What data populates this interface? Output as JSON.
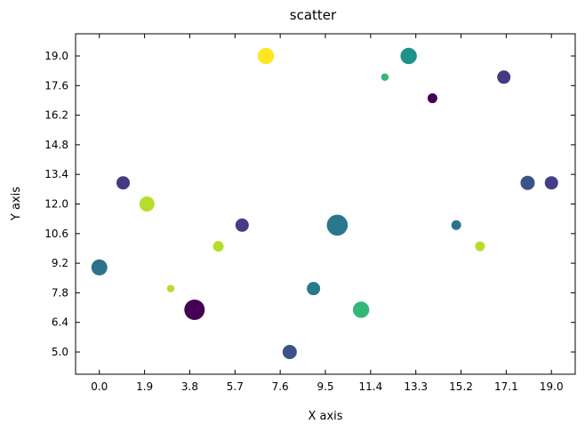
{
  "chart_data": {
    "type": "scatter",
    "title": "scatter",
    "xlabel": "X axis",
    "ylabel": "Y axis",
    "xlim": [
      -1.0,
      20.0
    ],
    "ylim": [
      3.95,
      20.05
    ],
    "xticks": [
      "0.0",
      "1.9",
      "3.8",
      "5.7",
      "7.6",
      "9.5",
      "11.4",
      "13.3",
      "15.2",
      "17.1",
      "19.0"
    ],
    "yticks": [
      "5.0",
      "6.4",
      "7.8",
      "9.2",
      "10.6",
      "12.0",
      "13.4",
      "14.8",
      "16.2",
      "17.6",
      "19.0"
    ],
    "grid": false,
    "colormap": "viridis",
    "points": [
      {
        "x": 0,
        "y": 9,
        "size": 0.6,
        "color": "#2c728e"
      },
      {
        "x": 1,
        "y": 13,
        "size": 0.45,
        "color": "#443a83"
      },
      {
        "x": 2,
        "y": 12,
        "size": 0.55,
        "color": "#b5de2b"
      },
      {
        "x": 3,
        "y": 8,
        "size": 0.12,
        "color": "#b5de2b"
      },
      {
        "x": 4,
        "y": 7,
        "size": 0.85,
        "color": "#440154"
      },
      {
        "x": 5,
        "y": 10,
        "size": 0.3,
        "color": "#b5de2b"
      },
      {
        "x": 6,
        "y": 11,
        "size": 0.45,
        "color": "#433e85"
      },
      {
        "x": 7,
        "y": 19,
        "size": 0.62,
        "color": "#fde725"
      },
      {
        "x": 8,
        "y": 5,
        "size": 0.5,
        "color": "#3b528b"
      },
      {
        "x": 9,
        "y": 8,
        "size": 0.45,
        "color": "#2a788e"
      },
      {
        "x": 10,
        "y": 11,
        "size": 0.88,
        "color": "#2a788e"
      },
      {
        "x": 11,
        "y": 7,
        "size": 0.62,
        "color": "#35b779"
      },
      {
        "x": 12,
        "y": 18,
        "size": 0.12,
        "color": "#35b779"
      },
      {
        "x": 13,
        "y": 19,
        "size": 0.62,
        "color": "#21918c"
      },
      {
        "x": 14,
        "y": 17,
        "size": 0.25,
        "color": "#440154"
      },
      {
        "x": 15,
        "y": 11,
        "size": 0.25,
        "color": "#2c728e"
      },
      {
        "x": 16,
        "y": 10,
        "size": 0.25,
        "color": "#b5de2b"
      },
      {
        "x": 17,
        "y": 18,
        "size": 0.45,
        "color": "#443a83"
      },
      {
        "x": 18,
        "y": 13,
        "size": 0.5,
        "color": "#3b528b"
      },
      {
        "x": 19,
        "y": 13,
        "size": 0.45,
        "color": "#433e85"
      }
    ]
  }
}
